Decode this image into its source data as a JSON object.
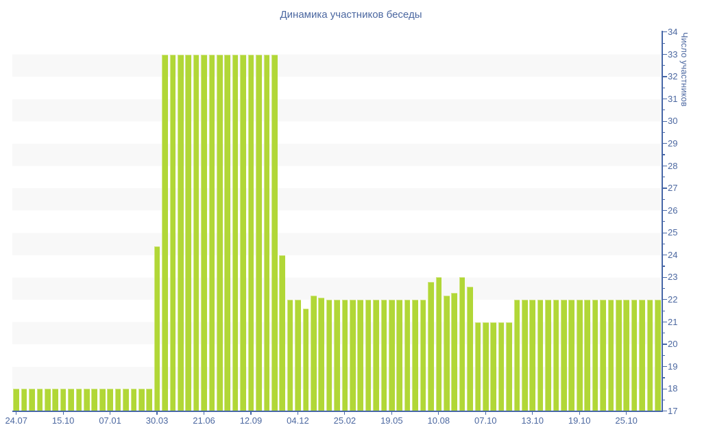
{
  "title": "Динамика участников беседы",
  "y_axis": {
    "title": "Число участников",
    "min": 17,
    "max": 34,
    "major_step": 1,
    "minor_step": 0.5,
    "tick_labels": [
      "17",
      "18",
      "19",
      "20",
      "21",
      "22",
      "23",
      "24",
      "25",
      "26",
      "27",
      "28",
      "29",
      "30",
      "31",
      "32",
      "33",
      "34"
    ],
    "side": "right"
  },
  "x_axis": {
    "labels": [
      "24.07",
      "15.10",
      "07.01",
      "30.03",
      "21.06",
      "12.09",
      "04.12",
      "25.02",
      "19.05",
      "10.08",
      "07.10",
      "13.10",
      "19.10",
      "25.10"
    ],
    "label_bar_indices": [
      0,
      6,
      12,
      18,
      24,
      30,
      36,
      42,
      48,
      54,
      60,
      66,
      72,
      78
    ]
  },
  "chart_data": {
    "type": "bar",
    "title": "Динамика участников беседы",
    "xlabel": "",
    "ylabel": "Число участников",
    "ylim": [
      17,
      34
    ],
    "grid": "alternating horizontal bands on even-to-odd unit intervals (18-19, 20-21, ... 32-33)",
    "legend": "none",
    "bar_count": 83,
    "x_tick_labels": [
      "24.07",
      "15.10",
      "07.01",
      "30.03",
      "21.06",
      "12.09",
      "04.12",
      "25.02",
      "19.05",
      "10.08",
      "07.10",
      "13.10",
      "19.10",
      "25.10"
    ],
    "x_tick_label_indices": [
      0,
      6,
      12,
      18,
      24,
      30,
      36,
      42,
      48,
      54,
      60,
      66,
      72,
      78
    ],
    "values": [
      18,
      18,
      18,
      18,
      18,
      18,
      18,
      18,
      18,
      18,
      18,
      18,
      18,
      18,
      18,
      18,
      18,
      18,
      24.4,
      33,
      33,
      33,
      33,
      33,
      33,
      33,
      33,
      33,
      33,
      33,
      33,
      33,
      33,
      33,
      24,
      22,
      22,
      21.6,
      22.2,
      22.1,
      22,
      22,
      22,
      22,
      22,
      22,
      22,
      22,
      22,
      22,
      22,
      22,
      22,
      22.8,
      23,
      22.2,
      22.3,
      23,
      22.6,
      21,
      21,
      21,
      21,
      21,
      22,
      22,
      22,
      22,
      22,
      22,
      22,
      22,
      22,
      22,
      22,
      22,
      22,
      22,
      22,
      22,
      22,
      22,
      22
    ]
  },
  "colors": {
    "bar": "#b1d737",
    "bar_edge": "#cfe57e",
    "axis_line": "#4767a7",
    "text": "#4b67a0",
    "stripe": "#f8f8f8",
    "background": "#ffffff"
  }
}
